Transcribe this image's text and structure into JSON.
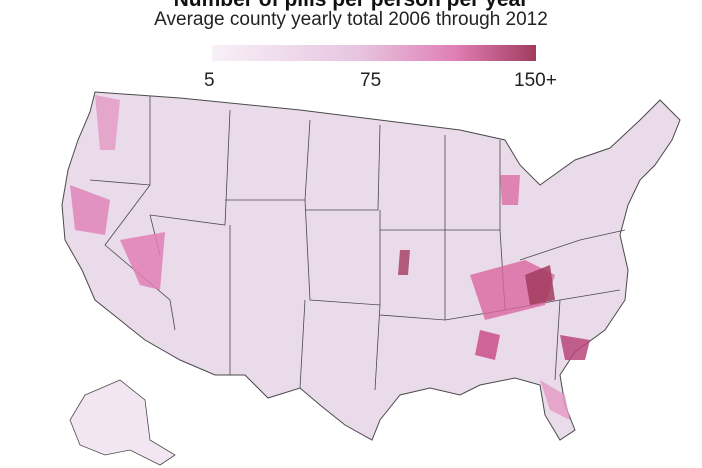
{
  "title": "Number of pills per person per year",
  "subtitle": "Average county yearly total 2006 through 2012",
  "legend": {
    "labels": [
      "5",
      "75",
      "150+"
    ],
    "min": 5,
    "max": 150,
    "colors": [
      "#f7f1f7",
      "#e7c5e0",
      "#e07fb5",
      "#a23b5e"
    ]
  },
  "map": {
    "background": "#e9dbe9",
    "border_color": "#4a4a4a",
    "regions": [
      "contiguous-us",
      "alaska"
    ]
  }
}
